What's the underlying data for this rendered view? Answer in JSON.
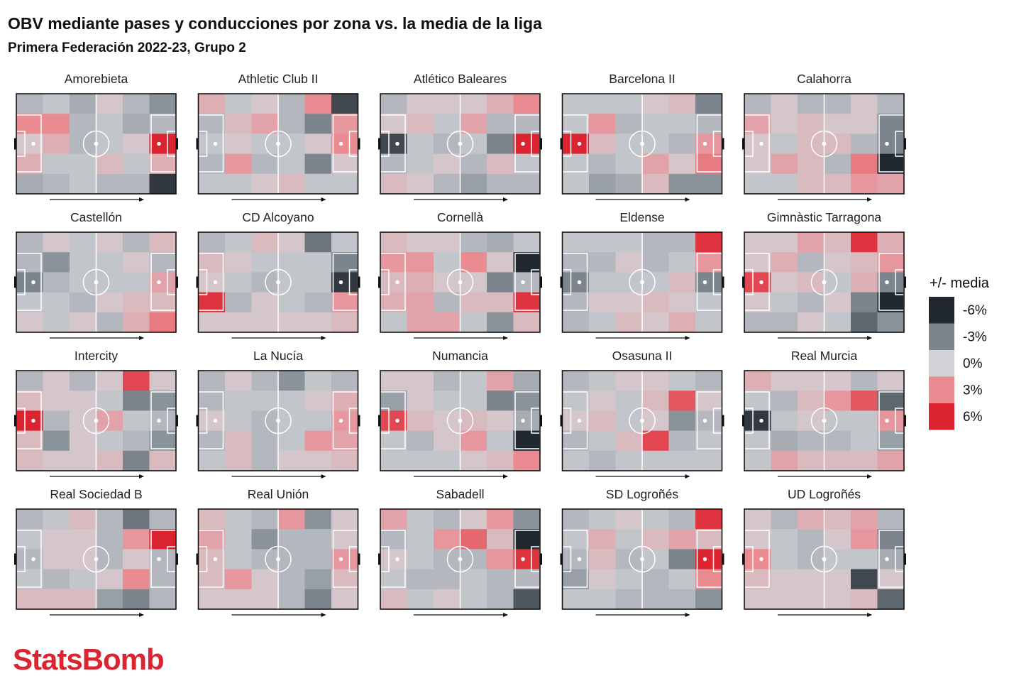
{
  "header": {
    "title": "OBV mediante pases y conducciones por zona vs. la media de la liga",
    "subtitle": "Primera Federación 2022-23, Grupo 2"
  },
  "logo": {
    "text": "StatsBomb",
    "color": "#dc2330"
  },
  "chart_data": {
    "type": "heatmap",
    "title": "OBV mediante pases y conducciones por zona vs. la media de la liga",
    "subtitle": "Primera Federación 2022-23, Grupo 2",
    "grid": {
      "columns": 6,
      "rows": 5
    },
    "value_unit": "% vs media",
    "color_scale": {
      "title": "+/- media",
      "min": -6,
      "max": 6,
      "stops": [
        {
          "value": -6,
          "label": "-6%",
          "color": "#22282f"
        },
        {
          "value": -3,
          "label": "-3%",
          "color": "#7c858e"
        },
        {
          "value": 0,
          "label": "0%",
          "color": "#d0d2d6"
        },
        {
          "value": 3,
          "label": "3%",
          "color": "#ea8b92"
        },
        {
          "value": 6,
          "label": "6%",
          "color": "#dc2330"
        }
      ]
    },
    "teams": [
      {
        "name": "Amorebieta",
        "values": [
          [
            -1,
            -0.5,
            -1.5,
            0.5,
            -1,
            -2.5
          ],
          [
            3,
            3,
            -1,
            -0.5,
            -1.5,
            -1
          ],
          [
            0.5,
            1.5,
            -1,
            -0.5,
            0.5,
            6
          ],
          [
            1.5,
            -0.5,
            -0.5,
            1,
            -0.5,
            1.5
          ],
          [
            -1.5,
            -1,
            -0.5,
            -1,
            -1,
            -5.5
          ]
        ]
      },
      {
        "name": "Athletic Club II",
        "values": [
          [
            1.5,
            -0.5,
            0.5,
            -1,
            3,
            -5
          ],
          [
            -1,
            1,
            2,
            -1,
            -3,
            2.5
          ],
          [
            -0.5,
            0.5,
            -0.5,
            -0.5,
            0.5,
            3
          ],
          [
            -1,
            2.5,
            -1,
            -0.5,
            -3,
            0.5
          ],
          [
            -0.5,
            -0.5,
            0.5,
            1,
            -0.5,
            -0.5
          ]
        ]
      },
      {
        "name": "Atlético Baleares",
        "values": [
          [
            -1,
            0.5,
            0.5,
            0.5,
            1.5,
            3
          ],
          [
            0.5,
            1,
            -0.5,
            2,
            -1,
            -1
          ],
          [
            -5,
            -0.5,
            -1,
            -0.5,
            -3,
            6
          ],
          [
            -1,
            -0.5,
            0.5,
            -1,
            1,
            -0.5
          ],
          [
            1,
            0.5,
            -1,
            -2,
            -1,
            -1
          ]
        ]
      },
      {
        "name": "Barcelona II",
        "values": [
          [
            -0.5,
            -0.5,
            -0.5,
            0.5,
            1,
            -3
          ],
          [
            -0.5,
            2.5,
            -1,
            -0.5,
            -0.5,
            -1
          ],
          [
            6,
            1,
            -0.5,
            -0.5,
            -1,
            2.5
          ],
          [
            -0.5,
            -1,
            -0.5,
            2,
            0.5,
            3.5
          ],
          [
            -0.5,
            -2,
            -1.5,
            1,
            -2.5,
            -2.5
          ]
        ]
      },
      {
        "name": "Calahorra",
        "values": [
          [
            -1,
            0.5,
            -1,
            -1,
            0.5,
            -1
          ],
          [
            2,
            0.5,
            1,
            0.5,
            0.5,
            -3
          ],
          [
            0.5,
            -0.5,
            1,
            1,
            -1,
            -3
          ],
          [
            0.5,
            2,
            1,
            -1,
            3.5,
            -6
          ],
          [
            -0.5,
            -0.5,
            1,
            1,
            2.5,
            2
          ]
        ]
      },
      {
        "name": "Castellón",
        "values": [
          [
            -1,
            0.5,
            -0.5,
            0.5,
            -1,
            1
          ],
          [
            -1,
            -2.5,
            -0.5,
            -0.5,
            0.5,
            -1
          ],
          [
            -3,
            -1,
            -0.5,
            -0.5,
            -0.5,
            2
          ],
          [
            -0.5,
            -0.5,
            -1,
            0.5,
            1,
            1
          ],
          [
            0.5,
            -0.5,
            0.5,
            -1,
            1.5,
            3.5
          ]
        ]
      },
      {
        "name": "CD Alcoyano",
        "values": [
          [
            -1,
            -0.5,
            1,
            0.5,
            -3.5,
            -0.5
          ],
          [
            1,
            0.5,
            -0.5,
            -0.5,
            -0.5,
            -3
          ],
          [
            0.5,
            -0.5,
            -1,
            -0.5,
            -0.5,
            -5.5
          ],
          [
            5.5,
            -1,
            0.5,
            -0.5,
            -1,
            2.5
          ],
          [
            0.5,
            0.5,
            0.5,
            0.5,
            0.5,
            1
          ]
        ]
      },
      {
        "name": "Cornellà",
        "values": [
          [
            1,
            0.5,
            0.5,
            -1,
            -1.5,
            -0.5
          ],
          [
            2.5,
            2.5,
            -0.5,
            3,
            0.5,
            -6
          ],
          [
            1,
            1.5,
            0.5,
            0.5,
            -3,
            -1
          ],
          [
            1.5,
            2,
            -1,
            1,
            1,
            5.5
          ],
          [
            -0.5,
            2,
            2,
            -0.5,
            -2.5,
            1
          ]
        ]
      },
      {
        "name": "Eldense",
        "values": [
          [
            -0.5,
            -0.5,
            -0.5,
            -1,
            -1,
            5.5
          ],
          [
            -1,
            -1,
            0.5,
            -1,
            -0.5,
            2.5
          ],
          [
            -3,
            -0.5,
            -0.5,
            -0.5,
            1,
            -3
          ],
          [
            -1,
            0.5,
            0.5,
            1,
            0.5,
            -0.5
          ],
          [
            -1,
            -0.5,
            1,
            0.5,
            1.5,
            -0.5
          ]
        ]
      },
      {
        "name": "Gimnàstic Tarragona",
        "values": [
          [
            0.5,
            0.5,
            2,
            1,
            5.5,
            1.5
          ],
          [
            0.5,
            1.5,
            -1,
            0.5,
            1,
            2.5
          ],
          [
            5,
            0.5,
            1,
            -0.5,
            1.5,
            -3
          ],
          [
            0.5,
            -0.5,
            -1,
            0.5,
            -3,
            -6
          ],
          [
            -1,
            -1,
            0.5,
            -0.5,
            -4,
            -2.5
          ]
        ]
      },
      {
        "name": "Intercity",
        "values": [
          [
            -1,
            0.5,
            -1,
            0.5,
            5,
            0.5
          ],
          [
            1,
            0.5,
            0.5,
            -0.5,
            -3,
            -2.5
          ],
          [
            6,
            -1,
            0.5,
            2,
            -0.5,
            -1
          ],
          [
            1,
            -2.5,
            0.5,
            -0.5,
            -1,
            -2.5
          ],
          [
            1,
            0.5,
            0.5,
            1,
            -3,
            1
          ]
        ]
      },
      {
        "name": "La Nucía",
        "values": [
          [
            -1,
            0.5,
            -1,
            -2.5,
            -0.5,
            -1
          ],
          [
            -1,
            -0.5,
            -0.5,
            -0.5,
            0.5,
            1.5
          ],
          [
            0.5,
            -0.5,
            -1,
            -0.5,
            -0.5,
            2.5
          ],
          [
            -1,
            1,
            -1,
            -0.5,
            2.5,
            2
          ],
          [
            -0.5,
            1,
            -1,
            0.5,
            0.5,
            1
          ]
        ]
      },
      {
        "name": "Numancia",
        "values": [
          [
            0.5,
            0.5,
            -1,
            -0.5,
            2,
            -1.5
          ],
          [
            -2,
            0.5,
            -0.5,
            -0.5,
            -3,
            -2.5
          ],
          [
            5,
            1,
            0.5,
            1,
            0.5,
            -1.5
          ],
          [
            -0.5,
            -1,
            0.5,
            2.5,
            -0.5,
            -6
          ],
          [
            -0.5,
            -0.5,
            -0.5,
            0.5,
            1,
            3
          ]
        ]
      },
      {
        "name": "Osasuna II",
        "values": [
          [
            -1,
            -0.5,
            0.5,
            0.5,
            -0.5,
            -1
          ],
          [
            -0.5,
            0.5,
            -0.5,
            1,
            4.5,
            0.5
          ],
          [
            0.5,
            1,
            -0.5,
            0.5,
            -2.5,
            -1
          ],
          [
            -1,
            -0.5,
            1,
            5,
            -1,
            -0.5
          ],
          [
            -0.5,
            -1,
            -0.5,
            -0.5,
            -0.5,
            -0.5
          ]
        ]
      },
      {
        "name": "Real Murcia",
        "values": [
          [
            1.5,
            0.5,
            0.5,
            0.5,
            -1,
            0.5
          ],
          [
            -0.5,
            -1,
            1,
            2.5,
            4.5,
            -4
          ],
          [
            -5.5,
            -0.5,
            0.5,
            -0.5,
            -0.5,
            2.5
          ],
          [
            -0.5,
            -1.5,
            -1,
            -1,
            -0.5,
            -2
          ],
          [
            -0.5,
            2,
            1,
            1,
            1,
            2
          ]
        ]
      },
      {
        "name": "Real Sociedad B",
        "values": [
          [
            -1,
            -0.5,
            1,
            -1,
            -3.5,
            -1
          ],
          [
            -0.5,
            0.5,
            0.5,
            -1,
            2.5,
            6
          ],
          [
            -1,
            0.5,
            0.5,
            -1,
            0.5,
            -1
          ],
          [
            -0.5,
            -1,
            -0.5,
            0.5,
            3,
            -1
          ],
          [
            1,
            1,
            1,
            -2,
            -3,
            -1
          ]
        ]
      },
      {
        "name": "Real Unión",
        "values": [
          [
            1,
            -0.5,
            -1,
            2.5,
            -2.5,
            0.5
          ],
          [
            2,
            -0.5,
            -2.5,
            -1,
            -1,
            0.5
          ],
          [
            1,
            -0.5,
            -1,
            -1,
            -1,
            2.5
          ],
          [
            1,
            2.5,
            0.5,
            -1,
            -2,
            1
          ],
          [
            0.5,
            0.5,
            0.5,
            -1,
            -3,
            0.5
          ]
        ]
      },
      {
        "name": "Sabadell",
        "values": [
          [
            2,
            -0.5,
            -1,
            0.5,
            2.5,
            -2.5
          ],
          [
            -1,
            -0.5,
            2.5,
            4,
            1,
            -6
          ],
          [
            0.5,
            -0.5,
            -1,
            -1,
            2.5,
            5.5
          ],
          [
            -0.5,
            -1,
            -1,
            -0.5,
            -1,
            -1
          ],
          [
            1,
            -0.5,
            0.5,
            -0.5,
            -1,
            -4.5
          ]
        ]
      },
      {
        "name": "SD Logroñés",
        "values": [
          [
            -1,
            -0.5,
            0.5,
            -0.5,
            -1,
            5.5
          ],
          [
            -0.5,
            1.5,
            -0.5,
            1,
            2,
            1
          ],
          [
            -1,
            1,
            -1,
            -0.5,
            -3,
            6
          ],
          [
            -2,
            0.5,
            -0.5,
            -1,
            -0.5,
            3
          ],
          [
            -0.5,
            -0.5,
            -1,
            -1,
            -1,
            -2.5
          ]
        ]
      },
      {
        "name": "UD Logroñés",
        "values": [
          [
            0.5,
            -1,
            1.5,
            1,
            2,
            -1
          ],
          [
            0.5,
            -0.5,
            -1,
            0.5,
            2.5,
            -3
          ],
          [
            3,
            -0.5,
            -1,
            -0.5,
            -0.5,
            -1.5
          ],
          [
            1,
            0.5,
            0.5,
            0.5,
            -5,
            0.5
          ],
          [
            0.5,
            0.5,
            0.5,
            0.5,
            1,
            -4
          ]
        ]
      }
    ]
  }
}
